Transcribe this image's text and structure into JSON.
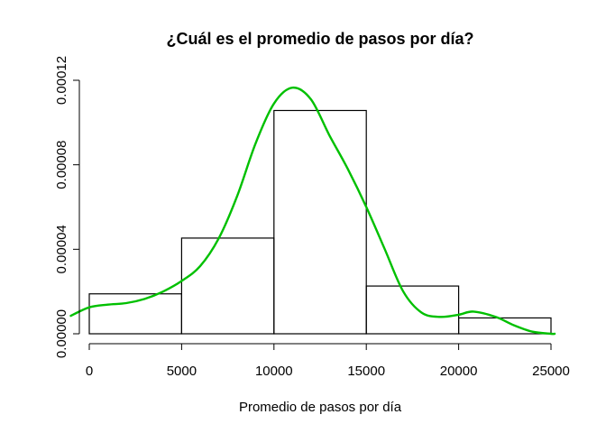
{
  "chart_data": {
    "type": "bar",
    "subtype": "histogram-with-density",
    "title": "¿Cuál es el promedio de pasos por día?",
    "xlabel": "Promedio de pasos por día",
    "ylabel": "",
    "xlim": [
      0,
      25000
    ],
    "ylim": [
      0,
      0.00012
    ],
    "x_ticks": [
      "0",
      "5000",
      "10000",
      "15000",
      "20000",
      "25000"
    ],
    "y_ticks": [
      "0.00000",
      "0.00004",
      "0.00008",
      "0.00012"
    ],
    "bins": [
      {
        "from": 0,
        "to": 5000,
        "density": 1.89e-05
      },
      {
        "from": 5000,
        "to": 10000,
        "density": 4.53e-05
      },
      {
        "from": 10000,
        "to": 15000,
        "density": 0.0001057
      },
      {
        "from": 15000,
        "to": 20000,
        "density": 2.26e-05
      },
      {
        "from": 20000,
        "to": 25000,
        "density": 7.5e-06
      }
    ],
    "density_curve": {
      "color": "#00C000",
      "points": [
        [
          -1000,
          8.5e-06
        ],
        [
          0,
          1.25e-05
        ],
        [
          1000,
          1.38e-05
        ],
        [
          2000,
          1.45e-05
        ],
        [
          3000,
          1.65e-05
        ],
        [
          4000,
          2e-05
        ],
        [
          5000,
          2.5e-05
        ],
        [
          6000,
          3.2e-05
        ],
        [
          7000,
          4.5e-05
        ],
        [
          8000,
          6.5e-05
        ],
        [
          9000,
          9e-05
        ],
        [
          10000,
          0.000109
        ],
        [
          11000,
          0.0001165
        ],
        [
          12000,
          0.000111
        ],
        [
          13000,
          9.4e-05
        ],
        [
          14000,
          7.8e-05
        ],
        [
          15000,
          6e-05
        ],
        [
          16000,
          4e-05
        ],
        [
          17000,
          2e-05
        ],
        [
          18000,
          1e-05
        ],
        [
          19000,
          8e-06
        ],
        [
          20000,
          9e-06
        ],
        [
          20800,
          1.05e-05
        ],
        [
          22000,
          8e-06
        ],
        [
          23000,
          4e-06
        ],
        [
          24000,
          1e-06
        ],
        [
          25000,
          0.0
        ],
        [
          25200,
          0.0
        ]
      ]
    }
  }
}
